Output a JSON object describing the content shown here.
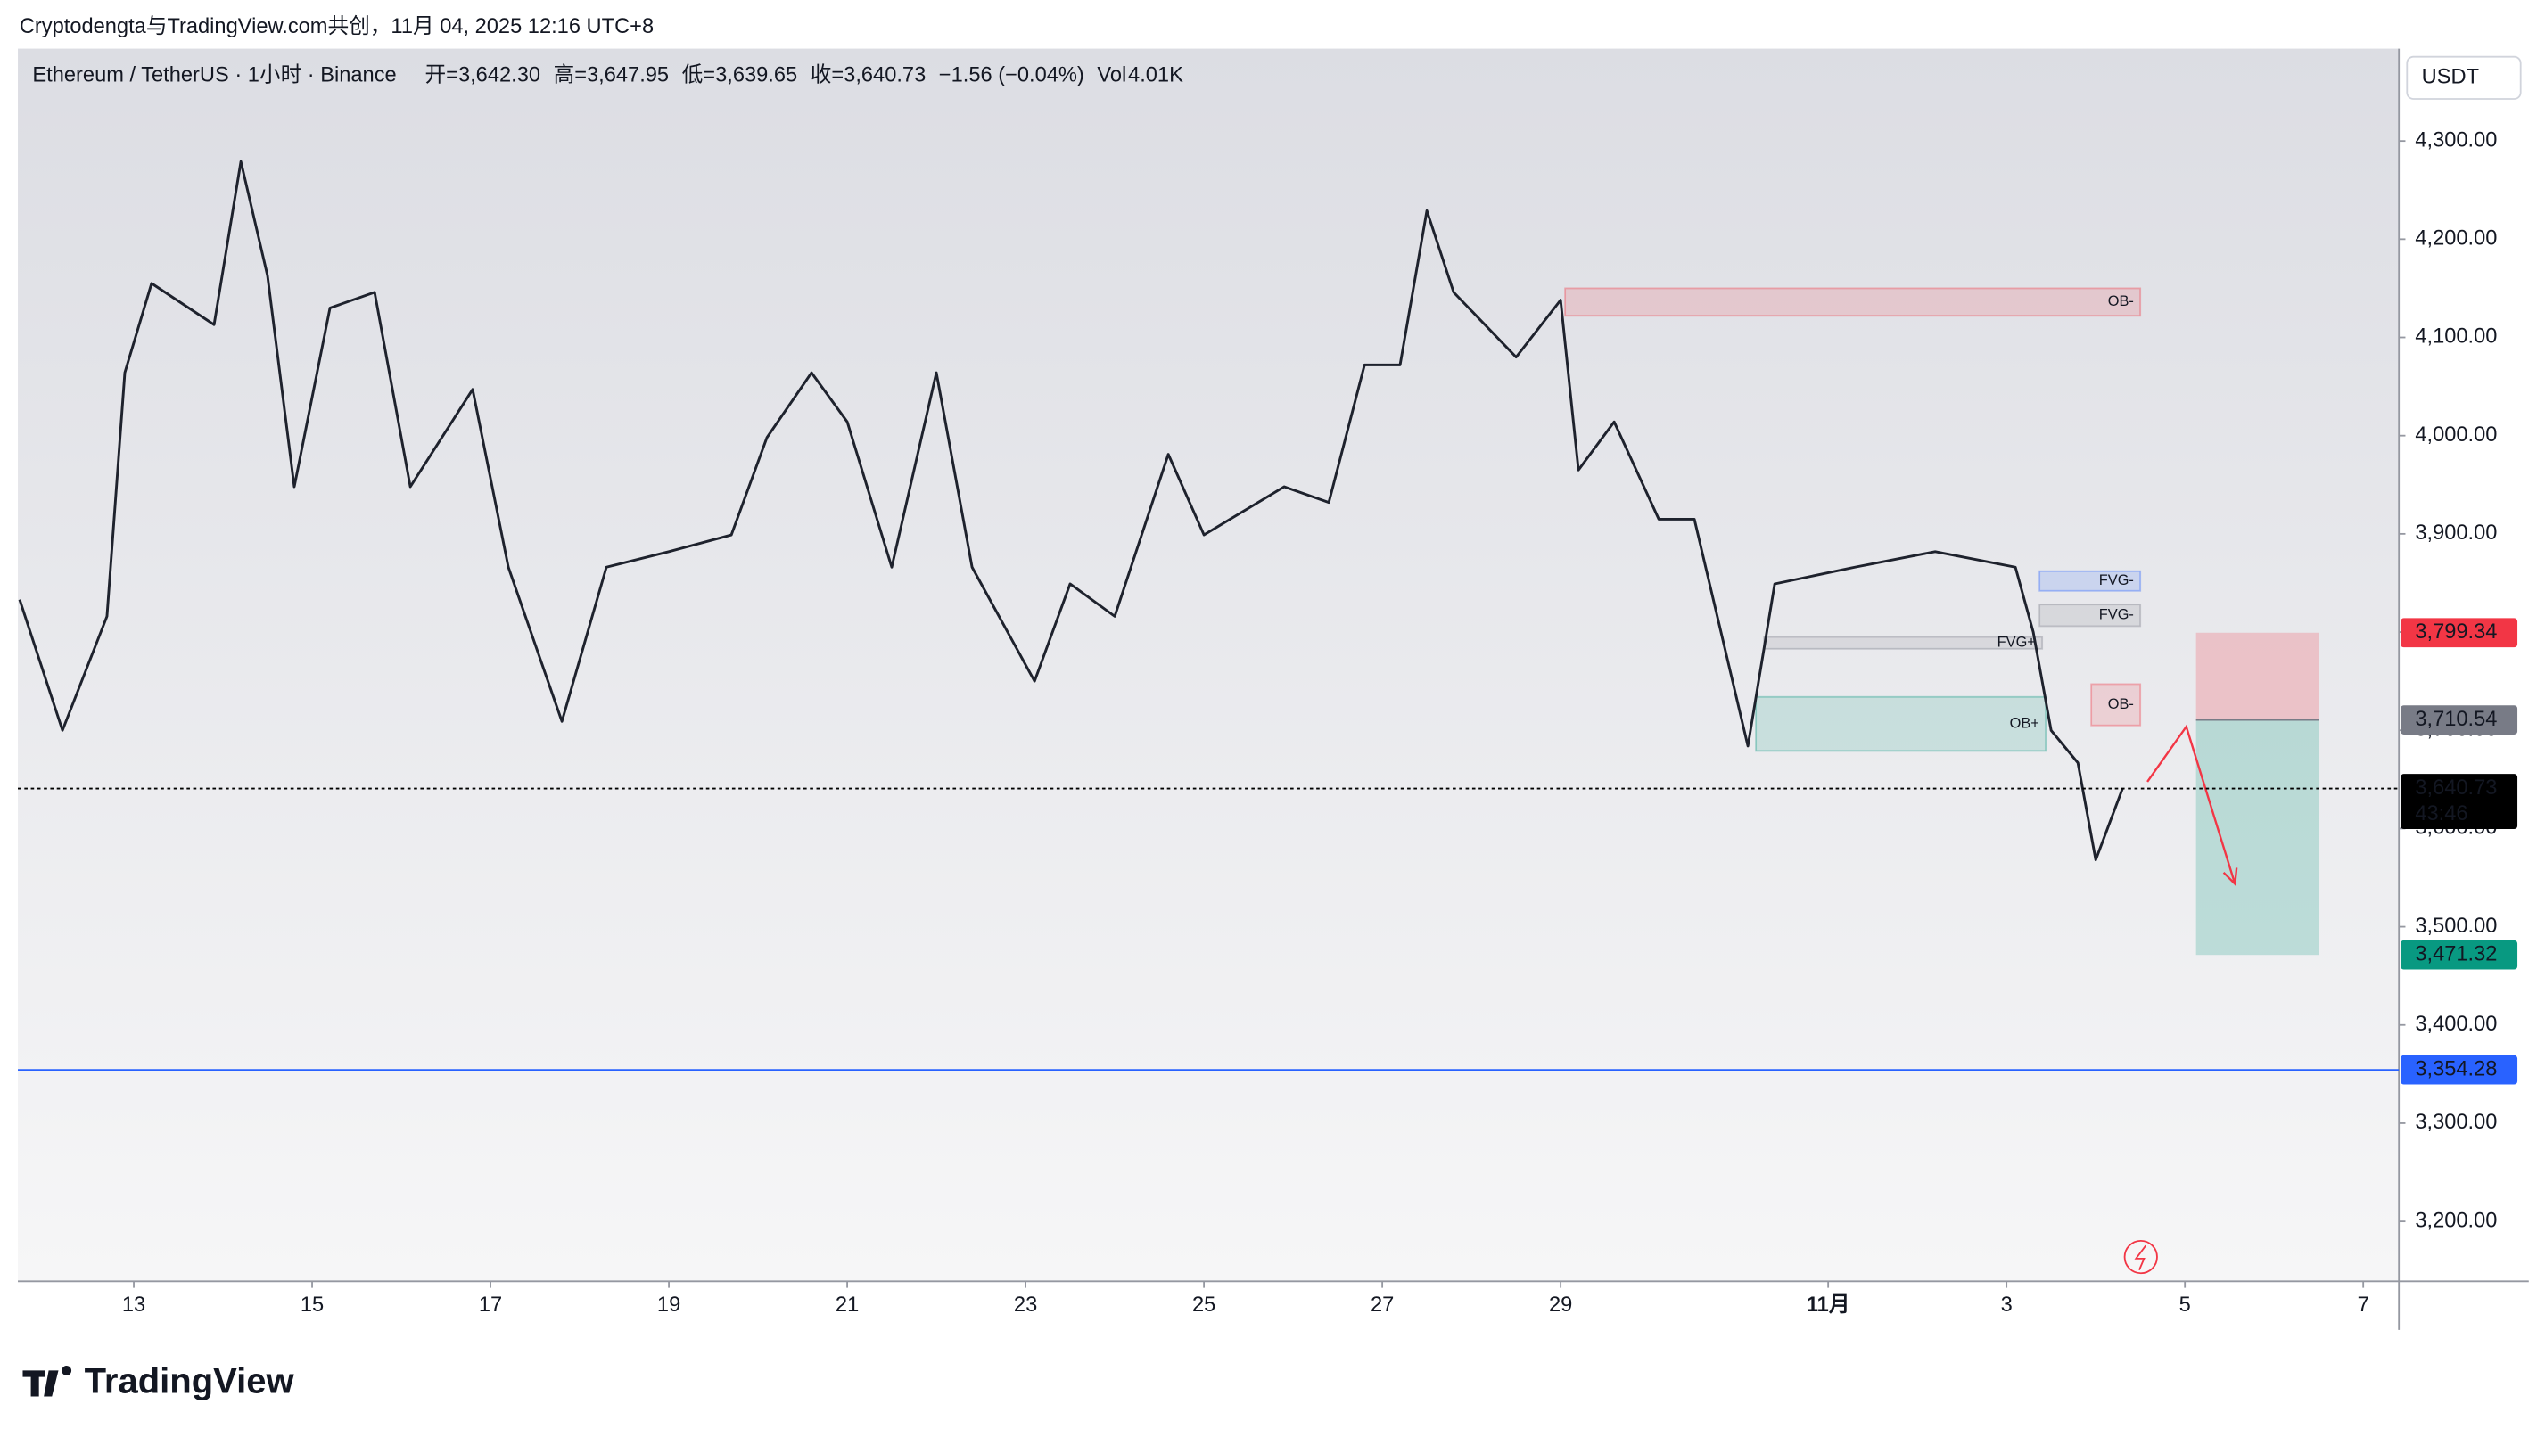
{
  "header": "Cryptodengta与TradingView.com共创，11月 04, 2025 12:16 UTC+8",
  "currency_button": "USDT",
  "logo": "TradingView",
  "chart_data": {
    "type": "line",
    "legend_items": [
      "开=3,642.30",
      "高=3,647.95",
      "低=3,639.65",
      "收=3,640.73",
      "−1.56 (−0.04%)"
    ],
    "volume_label": "Vol",
    "volume_value": "4.01K",
    "x": [
      11.72,
      12.2,
      12.7,
      12.9,
      13.2,
      13.9,
      14.2,
      14.5,
      14.8,
      15.2,
      15.7,
      16.1,
      16.8,
      17.2,
      17.8,
      18.3,
      19.0,
      19.7,
      20.1,
      20.6,
      21.0,
      21.5,
      22.0,
      22.4,
      23.1,
      23.5,
      24.0,
      24.6,
      25.0,
      25.9,
      26.4,
      26.8,
      27.2,
      27.5,
      27.8,
      28.5,
      29.0,
      29.2,
      29.6,
      30.1,
      30.5,
      31.1,
      31.4,
      32.3,
      33.2,
      34.1,
      34.3,
      34.5,
      34.8,
      35.0,
      35.3
    ],
    "series": [
      {
        "name": "Ethereum / TetherUS · 1小时 · Binance",
        "color": "#1e222d",
        "values": [
          3833,
          3700,
          3816,
          4064,
          4155,
          4113,
          4279,
          4163,
          3948,
          4130,
          4146,
          3948,
          4047,
          3866,
          3709,
          3866,
          3882,
          3899,
          3998,
          4064,
          4014,
          3866,
          4064,
          3866,
          3750,
          3849,
          3816,
          3981,
          3899,
          3948,
          3932,
          4072,
          4072,
          4229,
          4146,
          4080,
          4138,
          3965,
          4014,
          3915,
          3915,
          3684,
          3849,
          3866,
          3882,
          3866,
          3800,
          3700,
          3667,
          3568,
          3640.73
        ]
      }
    ],
    "xlim": [
      11.7,
      38.4
    ],
    "xticks": [
      13,
      15,
      17,
      19,
      21,
      23,
      25,
      27,
      29,
      {
        "value": 32,
        "label": "11月"
      },
      {
        "value": 34,
        "label": "3"
      },
      {
        "value": 36,
        "label": "5"
      },
      {
        "value": 38,
        "label": "7"
      }
    ],
    "ylim": [
      3139,
      4394
    ],
    "yticks": [
      {
        "value": 4300,
        "label": "4,300.00"
      },
      {
        "value": 4200,
        "label": "4,200.00"
      },
      {
        "value": 4100,
        "label": "4,100.00"
      },
      {
        "value": 4000,
        "label": "4,000.00"
      },
      {
        "value": 3900,
        "label": "3,900.00"
      },
      {
        "value": 3800,
        "label": "3,800.00"
      },
      {
        "value": 3700,
        "label": "3,700.00"
      },
      {
        "value": 3600,
        "label": "3,600.00"
      },
      {
        "value": 3500,
        "label": "3,500.00"
      },
      {
        "value": 3400,
        "label": "3,400.00"
      },
      {
        "value": 3300,
        "label": "3,300.00"
      },
      {
        "value": 3200,
        "label": "3,200.00"
      }
    ],
    "grid": false,
    "levels": [
      {
        "value": 3799.34,
        "label": "3,799.34",
        "color": "#f23645",
        "line": "none"
      },
      {
        "value": 3710.54,
        "label": "3,710.54",
        "color": "#787b86",
        "line": "none"
      },
      {
        "value": 3640.73,
        "label": "3,640.73",
        "color": "#000000",
        "line": "dotted",
        "countdown": "43:46"
      },
      {
        "value": 3471.32,
        "label": "3,471.32",
        "color": "#089981",
        "line": "none"
      },
      {
        "value": 3354.28,
        "label": "3,354.28",
        "color": "#2962ff",
        "line": "solid"
      }
    ],
    "zones": [
      {
        "label": "OB-",
        "top": 4150,
        "bottom": 4122,
        "x0": 29.05,
        "x1": 35.5,
        "color": "#f23645"
      },
      {
        "label": "FVG-",
        "top": 3862,
        "bottom": 3842,
        "x0": 34.37,
        "x1": 35.5,
        "color": "#2962ff"
      },
      {
        "label": "FVG-",
        "top": 3828,
        "bottom": 3806,
        "x0": 34.37,
        "x1": 35.5,
        "color": "#787b86"
      },
      {
        "label": "FVG+",
        "top": 3795,
        "bottom": 3783,
        "x0": 31.28,
        "x1": 34.4,
        "color": "#787b86"
      },
      {
        "label": "OB+",
        "top": 3734,
        "bottom": 3679,
        "x0": 31.19,
        "x1": 34.44,
        "color": "#089981"
      },
      {
        "label": "OB-",
        "top": 3747,
        "bottom": 3705,
        "x0": 34.95,
        "x1": 35.5,
        "color": "#f23645"
      }
    ]
  }
}
